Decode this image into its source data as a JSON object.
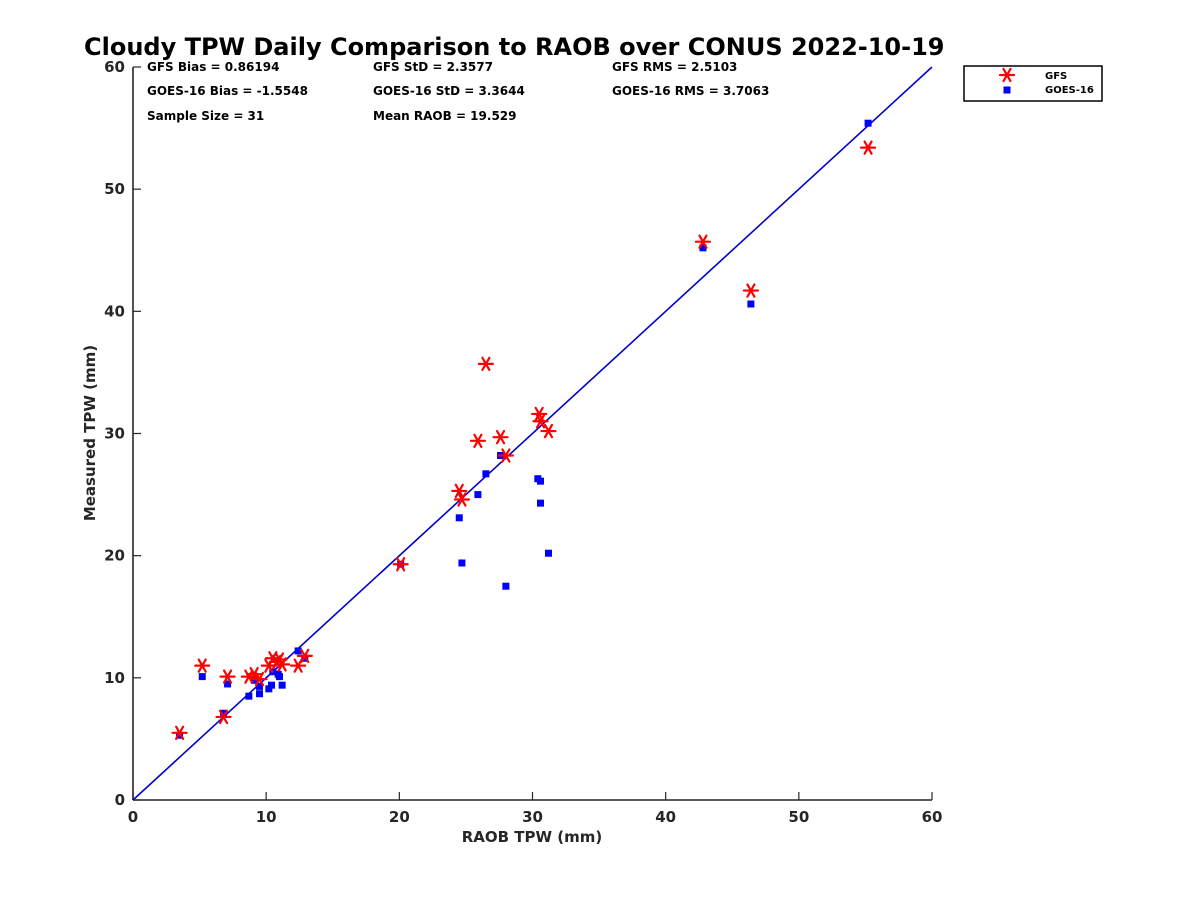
{
  "chart_data": {
    "type": "scatter",
    "title": "Cloudy TPW Daily Comparison to RAOB over CONUS 2022-10-19",
    "xlabel": "RAOB TPW (mm)",
    "ylabel": "Measured TPW (mm)",
    "xlim": [
      0,
      60
    ],
    "ylim": [
      0,
      60
    ],
    "xticks": [
      "0",
      "10",
      "20",
      "30",
      "40",
      "50",
      "60"
    ],
    "yticks": [
      "0",
      "10",
      "20",
      "30",
      "40",
      "50",
      "60"
    ],
    "grid": false,
    "legend_position": "top-right",
    "stats": [
      "GFS Bias = 0.86194",
      "GFS StD = 2.3577",
      "GFS RMS = 2.5103",
      "GOES-16 Bias = -1.5548",
      "GOES-16 StD = 3.3644",
      "GOES-16 RMS = 3.7063",
      "Sample Size = 31",
      "Mean RAOB = 19.529"
    ],
    "reference_line": {
      "from": [
        0,
        0
      ],
      "to": [
        60,
        60
      ],
      "color": "#0000cc"
    },
    "series": [
      {
        "name": "GFS",
        "marker": "asterisk",
        "color": "#ff0000",
        "points": [
          [
            3.5,
            5.5
          ],
          [
            5.2,
            11.0
          ],
          [
            6.8,
            6.8
          ],
          [
            7.1,
            10.1
          ],
          [
            8.7,
            10.1
          ],
          [
            9.1,
            10.3
          ],
          [
            9.5,
            9.9
          ],
          [
            10.2,
            11.0
          ],
          [
            10.5,
            11.6
          ],
          [
            10.8,
            11.3
          ],
          [
            11.0,
            11.5
          ],
          [
            11.2,
            11.1
          ],
          [
            12.4,
            11.0
          ],
          [
            12.9,
            11.8
          ],
          [
            20.1,
            19.3
          ],
          [
            24.5,
            25.3
          ],
          [
            24.7,
            24.6
          ],
          [
            25.9,
            29.4
          ],
          [
            26.5,
            35.7
          ],
          [
            27.6,
            29.7
          ],
          [
            28.0,
            28.2
          ],
          [
            30.5,
            31.6
          ],
          [
            30.6,
            31.0
          ],
          [
            31.2,
            30.2
          ],
          [
            42.8,
            45.7
          ],
          [
            46.4,
            41.7
          ],
          [
            55.2,
            53.4
          ]
        ]
      },
      {
        "name": "GOES-16",
        "marker": "square",
        "color": "#0000ff",
        "points": [
          [
            3.5,
            5.3
          ],
          [
            5.2,
            10.1
          ],
          [
            6.8,
            7.1
          ],
          [
            7.1,
            9.5
          ],
          [
            8.7,
            8.5
          ],
          [
            9.1,
            9.8
          ],
          [
            9.5,
            8.7
          ],
          [
            9.5,
            9.3
          ],
          [
            10.2,
            9.1
          ],
          [
            10.4,
            9.4
          ],
          [
            10.5,
            10.5
          ],
          [
            10.9,
            10.3
          ],
          [
            11.0,
            10.1
          ],
          [
            11.2,
            9.4
          ],
          [
            12.4,
            12.2
          ],
          [
            12.9,
            11.6
          ],
          [
            20.1,
            19.3
          ],
          [
            24.5,
            23.1
          ],
          [
            24.7,
            19.4
          ],
          [
            25.9,
            25.0
          ],
          [
            26.5,
            26.7
          ],
          [
            27.6,
            28.2
          ],
          [
            28.0,
            17.5
          ],
          [
            30.4,
            26.3
          ],
          [
            30.6,
            26.1
          ],
          [
            30.6,
            24.3
          ],
          [
            31.2,
            20.2
          ],
          [
            42.8,
            45.2
          ],
          [
            46.4,
            40.6
          ],
          [
            55.2,
            55.4
          ]
        ]
      }
    ]
  }
}
